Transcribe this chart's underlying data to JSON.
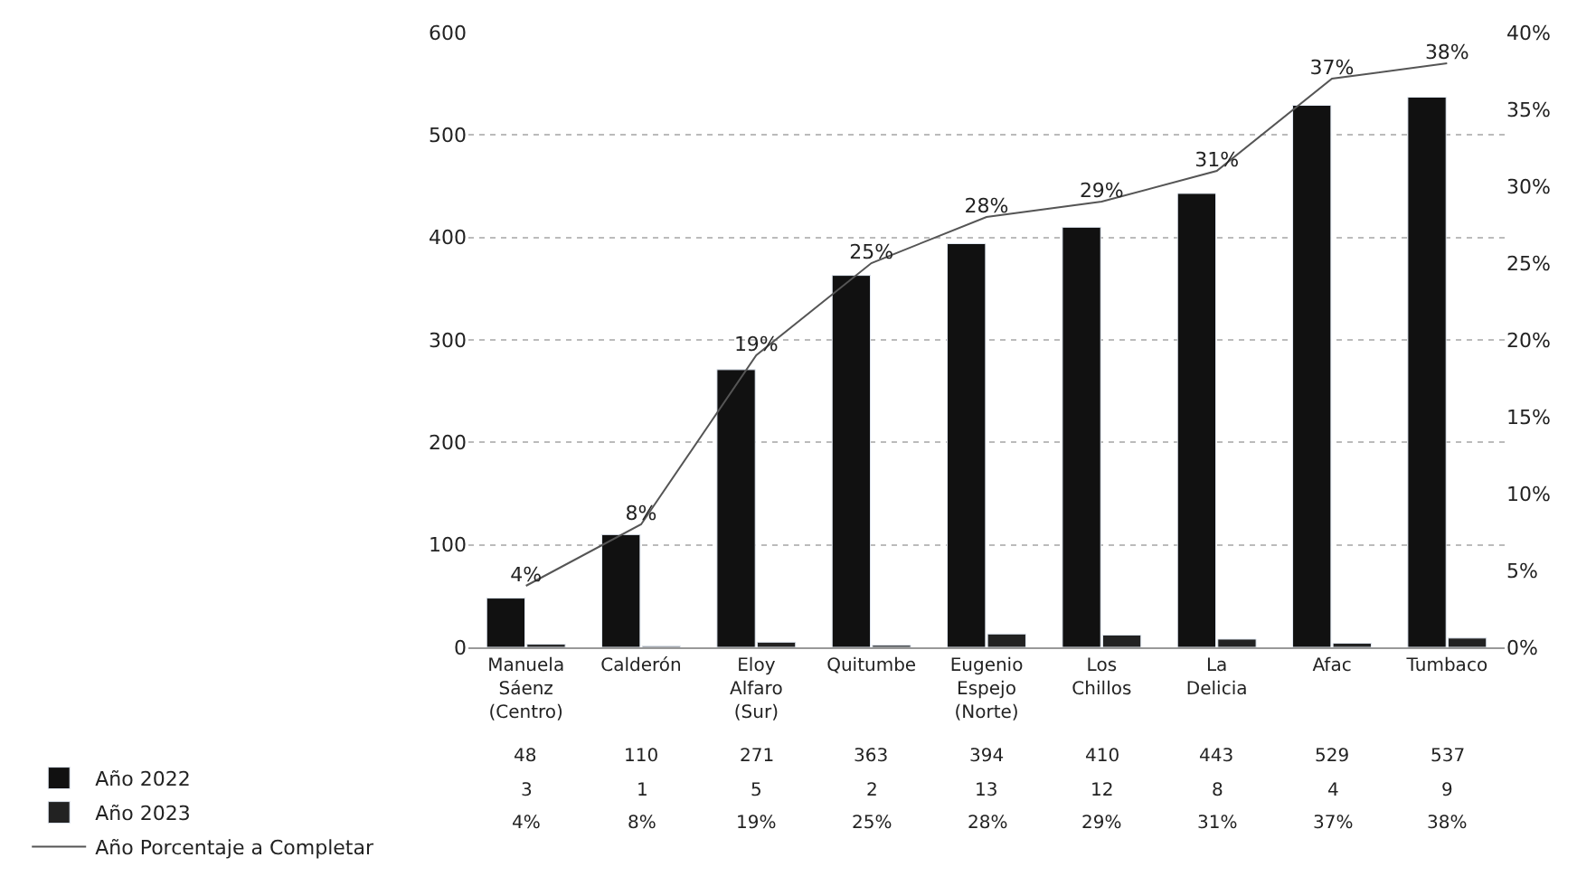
{
  "chart_data": {
    "type": "bar",
    "categories": [
      "Manuela Sáenz (Centro)",
      "Calderón",
      "Eloy Alfaro (Sur)",
      "Quitumbe",
      "Eugenio Espejo (Norte)",
      "Los Chillos",
      "La Delicia",
      "Afac",
      "Tumbaco"
    ],
    "series": [
      {
        "name": "Año 2022",
        "color": "#111111",
        "values": [
          48,
          110,
          271,
          363,
          394,
          410,
          443,
          529,
          537
        ]
      },
      {
        "name": "Año 2023",
        "color": "#222222",
        "values": [
          3,
          1,
          5,
          2,
          13,
          12,
          8,
          4,
          9
        ]
      },
      {
        "name": "Año Porcentaje a Completar",
        "type": "line",
        "axis": "y2",
        "color": "#555555",
        "values": [
          4,
          8,
          19,
          25,
          28,
          29,
          31,
          37,
          38
        ],
        "value_labels": [
          "4%",
          "8%",
          "19%",
          "25%",
          "28%",
          "29%",
          "31%",
          "37%",
          "38%"
        ]
      }
    ],
    "ylim": [
      0,
      600
    ],
    "yticks": [
      0,
      100,
      200,
      300,
      400,
      500,
      600
    ],
    "y2lim": [
      0,
      40
    ],
    "y2ticks": [
      {
        "value": 0,
        "label": "0%"
      },
      {
        "value": 5,
        "label": "5%"
      },
      {
        "value": 10,
        "label": "10%"
      },
      {
        "value": 15,
        "label": "15%"
      },
      {
        "value": 20,
        "label": "20%"
      },
      {
        "value": 25,
        "label": "25%"
      },
      {
        "value": 30,
        "label": "30%"
      },
      {
        "value": 35,
        "label": "35%"
      },
      {
        "value": 40,
        "label": "40%"
      }
    ],
    "grid": "y",
    "legend": "bottom left",
    "data_labels": true,
    "marker": "none",
    "line_style": "solid"
  }
}
